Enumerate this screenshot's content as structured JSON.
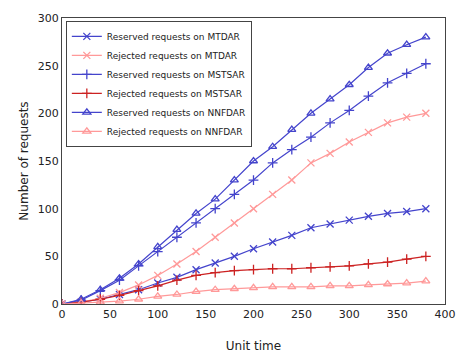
{
  "chart_data": {
    "type": "line",
    "xlabel": "Unit time",
    "ylabel": "Number of requests",
    "x": [
      0,
      20,
      40,
      60,
      80,
      100,
      120,
      140,
      160,
      180,
      200,
      220,
      240,
      260,
      280,
      300,
      320,
      340,
      360,
      380
    ],
    "series": [
      {
        "name": "Reserved requests on MTDAR",
        "color": "#4444CC",
        "marker": "x",
        "values": [
          0,
          2,
          5,
          10,
          15,
          22,
          28,
          36,
          43,
          50,
          58,
          65,
          72,
          80,
          84,
          88,
          92,
          95,
          97,
          100
        ]
      },
      {
        "name": "Rejected requests on MTDAR",
        "color": "#FF9999",
        "marker": "x",
        "values": [
          0,
          2,
          6,
          12,
          20,
          30,
          42,
          55,
          70,
          85,
          100,
          115,
          130,
          148,
          158,
          170,
          180,
          190,
          196,
          200
        ]
      },
      {
        "name": "Reserved requests on MSTSAR",
        "color": "#4444CC",
        "marker": "plus",
        "values": [
          0,
          4,
          14,
          25,
          40,
          55,
          70,
          85,
          100,
          115,
          130,
          148,
          162,
          175,
          190,
          203,
          218,
          232,
          242,
          252
        ]
      },
      {
        "name": "Rejected requests on MSTSAR",
        "color": "#CC2222",
        "marker": "plus",
        "values": [
          0,
          2,
          5,
          9,
          14,
          19,
          25,
          30,
          33,
          35,
          36,
          37,
          37,
          38,
          39,
          40,
          42,
          44,
          47,
          50
        ]
      },
      {
        "name": "Reserved requests on NNFDAR",
        "color": "#4444CC",
        "marker": "triangle-open",
        "values": [
          0,
          5,
          15,
          27,
          42,
          60,
          78,
          95,
          110,
          130,
          150,
          165,
          183,
          200,
          215,
          230,
          248,
          263,
          272,
          280
        ]
      },
      {
        "name": "Rejected requests on NNFDAR",
        "color": "#FF9999",
        "marker": "triangle-open",
        "values": [
          0,
          1,
          2,
          3,
          5,
          8,
          10,
          13,
          15,
          16,
          17,
          18,
          18,
          18,
          19,
          19,
          20,
          21,
          22,
          24
        ]
      }
    ],
    "xlim": [
      0,
      400
    ],
    "ylim": [
      0,
      300
    ],
    "xticks": [
      0,
      50,
      100,
      150,
      200,
      250,
      300,
      350,
      400
    ],
    "yticks": [
      0,
      50,
      100,
      150,
      200,
      250,
      300
    ],
    "grid": false,
    "legend": "upper left"
  }
}
